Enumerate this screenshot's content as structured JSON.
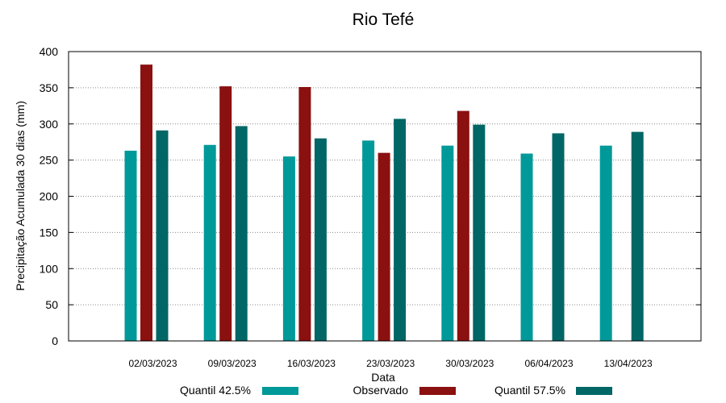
{
  "chart_data": {
    "type": "bar",
    "title": "Rio Tefé",
    "xlabel": "Data",
    "ylabel": "Precipitação Acumulada 30 dias (mm)",
    "ylim": [
      0,
      400
    ],
    "yticks": [
      0,
      50,
      100,
      150,
      200,
      250,
      300,
      350,
      400
    ],
    "grid": true,
    "legend_position": "bottom",
    "categories": [
      "02/03/2023",
      "09/03/2023",
      "16/03/2023",
      "23/03/2023",
      "30/03/2023",
      "06/04/2023",
      "13/04/2023"
    ],
    "series": [
      {
        "name": "Quantil 42.5%",
        "color": "#009999",
        "values": [
          263,
          271,
          255,
          277,
          270,
          259,
          270
        ]
      },
      {
        "name": "Observado",
        "color": "#8b1010",
        "values": [
          382,
          352,
          351,
          260,
          318,
          null,
          null
        ]
      },
      {
        "name": "Quantil 57.5%",
        "color": "#006666",
        "values": [
          291,
          297,
          280,
          307,
          299,
          287,
          289
        ]
      }
    ]
  }
}
